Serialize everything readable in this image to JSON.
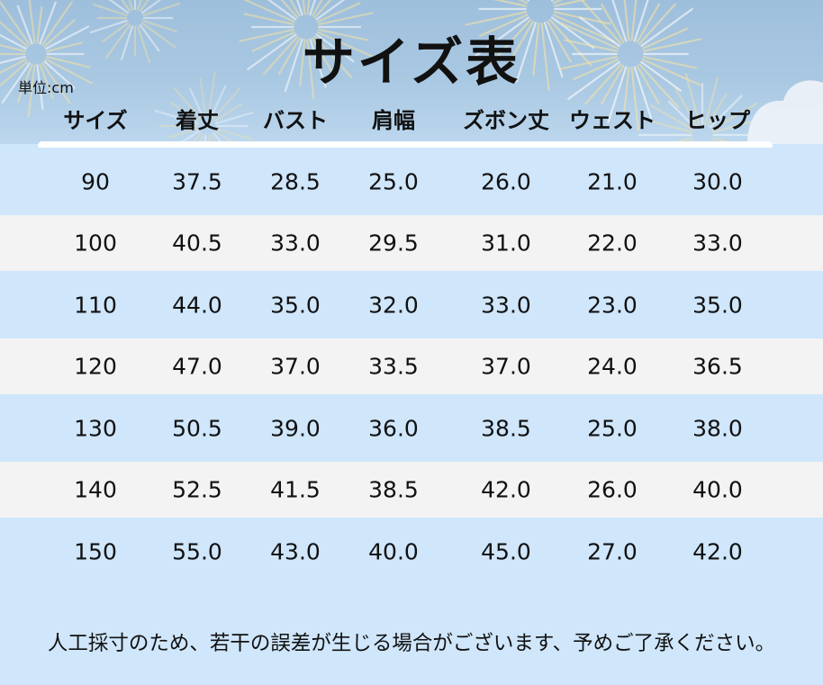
{
  "title": "サイズ表",
  "unit": "単位:cm",
  "columns": [
    "サイズ",
    "着丈",
    "バスト",
    "肩幅",
    "ズボン丈",
    "ウェスト",
    "ヒップ"
  ],
  "rows": [
    [
      "90",
      "37.5",
      "28.5",
      "25.0",
      "26.0",
      "21.0",
      "30.0"
    ],
    [
      "100",
      "40.5",
      "33.0",
      "29.5",
      "31.0",
      "22.0",
      "33.0"
    ],
    [
      "110",
      "44.0",
      "35.0",
      "32.0",
      "33.0",
      "23.0",
      "35.0"
    ],
    [
      "120",
      "47.0",
      "37.0",
      "33.5",
      "37.0",
      "24.0",
      "36.5"
    ],
    [
      "130",
      "50.5",
      "39.0",
      "36.0",
      "38.5",
      "25.0",
      "38.0"
    ],
    [
      "140",
      "52.5",
      "41.5",
      "38.5",
      "42.0",
      "26.0",
      "40.0"
    ],
    [
      "150",
      "55.0",
      "43.0",
      "40.0",
      "45.0",
      "27.0",
      "42.0"
    ]
  ],
  "note": "人工採寸のため、若干の誤差が生じる場合がございます、予めご了承ください。",
  "colors": {
    "header_bg": "#a9c8e2",
    "row_blue": "#cfe6fb",
    "row_gray": "#f3f3f3",
    "firework": "#f3e2a8"
  }
}
